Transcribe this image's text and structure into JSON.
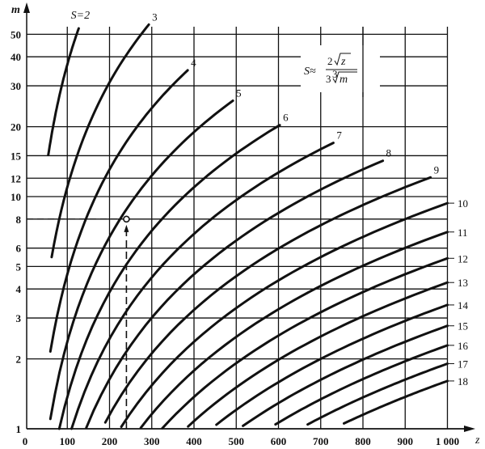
{
  "chart_data": {
    "type": "line",
    "title": "",
    "xlabel": "z",
    "ylabel": "m",
    "formula": "S ≈ 2√z / (3∛m)",
    "formula_parts": {
      "lhs": "S≈",
      "num_coef": "2",
      "num_var": "z",
      "den_coef": "3",
      "den_root": "3",
      "den_var": "m"
    },
    "xlim": [
      0,
      1000
    ],
    "ylim": [
      1,
      60
    ],
    "yscale": "log",
    "grid": true,
    "x_ticks": [
      {
        "value": 0,
        "label": "0"
      },
      {
        "value": 100,
        "label": "100"
      },
      {
        "value": 200,
        "label": "200"
      },
      {
        "value": 300,
        "label": "300"
      },
      {
        "value": 400,
        "label": "400"
      },
      {
        "value": 500,
        "label": "500"
      },
      {
        "value": 600,
        "label": "600"
      },
      {
        "value": 700,
        "label": "700"
      },
      {
        "value": 800,
        "label": "800"
      },
      {
        "value": 900,
        "label": "900"
      },
      {
        "value": 1000,
        "label": "1 000"
      }
    ],
    "y_ticks": [
      {
        "value": 1,
        "label": "1"
      },
      {
        "value": 2,
        "label": "2"
      },
      {
        "value": 3,
        "label": "3"
      },
      {
        "value": 4,
        "label": "4"
      },
      {
        "value": 5,
        "label": "5"
      },
      {
        "value": 6,
        "label": "6"
      },
      {
        "value": 8,
        "label": "8"
      },
      {
        "value": 10,
        "label": "10"
      },
      {
        "value": 12,
        "label": "12"
      },
      {
        "value": 15,
        "label": "15"
      },
      {
        "value": 20,
        "label": "20"
      },
      {
        "value": 30,
        "label": "30"
      },
      {
        "value": 40,
        "label": "40"
      },
      {
        "value": 50,
        "label": "50"
      }
    ],
    "series": [
      {
        "name": "S=2",
        "S": 2,
        "z_range": [
          55,
          127
        ],
        "label_side": "top"
      },
      {
        "name": "3",
        "S": 3,
        "z_range": [
          63,
          293
        ],
        "label_side": "top"
      },
      {
        "name": "4",
        "S": 4,
        "z_range": [
          60,
          385
        ],
        "label_side": "top"
      },
      {
        "name": "5",
        "S": 5,
        "z_range": [
          60,
          492
        ],
        "label_side": "top"
      },
      {
        "name": "6",
        "S": 6,
        "z_range": [
          81,
          603
        ],
        "label_side": "top"
      },
      {
        "name": "7",
        "S": 7,
        "z_range": [
          110,
          730
        ],
        "label_side": "top"
      },
      {
        "name": "8",
        "S": 8,
        "z_range": [
          145,
          847
        ],
        "label_side": "top"
      },
      {
        "name": "9",
        "S": 9,
        "z_range": [
          190,
          960
        ],
        "label_side": "top"
      },
      {
        "name": "10",
        "S": 10,
        "z_range": [
          228,
          1000
        ],
        "label_side": "right"
      },
      {
        "name": "11",
        "S": 11,
        "z_range": [
          274,
          1000
        ],
        "label_side": "right"
      },
      {
        "name": "12",
        "S": 12,
        "z_range": [
          325,
          1000
        ],
        "label_side": "right"
      },
      {
        "name": "13",
        "S": 13,
        "z_range": [
          386,
          1000
        ],
        "label_side": "right"
      },
      {
        "name": "14",
        "S": 14,
        "z_range": [
          453,
          1000
        ],
        "label_side": "right"
      },
      {
        "name": "15",
        "S": 15,
        "z_range": [
          516,
          1000
        ],
        "label_side": "right"
      },
      {
        "name": "16",
        "S": 16,
        "z_range": [
          593,
          1000
        ],
        "label_side": "right"
      },
      {
        "name": "17",
        "S": 17,
        "z_range": [
          669,
          1000
        ],
        "label_side": "right"
      },
      {
        "name": "18",
        "S": 18,
        "z_range": [
          755,
          1000
        ],
        "label_side": "right"
      }
    ],
    "example_point": {
      "z": 240,
      "m": 8
    },
    "colors": {
      "ink": "#111111",
      "background": "#ffffff"
    }
  }
}
